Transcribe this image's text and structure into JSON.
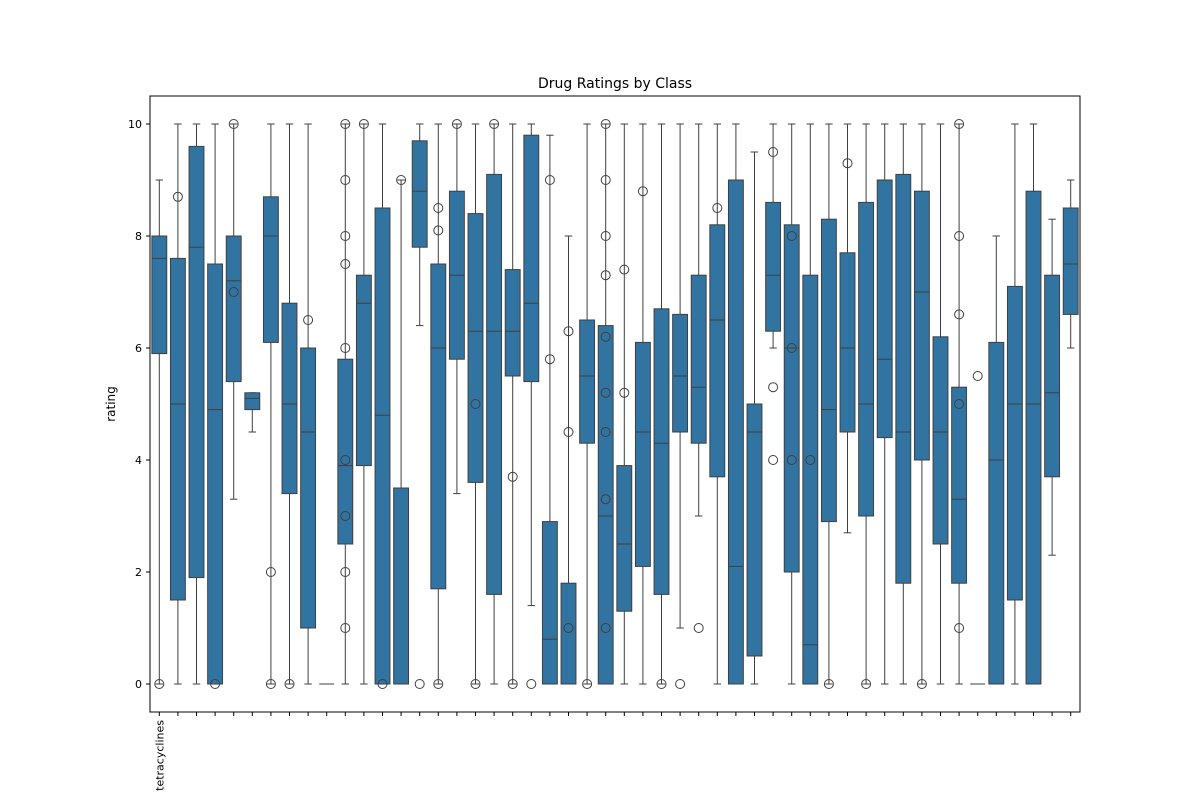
{
  "chart_data": {
    "type": "box",
    "title": "Drug Ratings by Class",
    "ylabel": "rating",
    "color": "#3274a1",
    "ylim": [
      -0.5,
      10.5
    ],
    "yticks": [
      0,
      2,
      4,
      6,
      8,
      10
    ],
    "categories": [
      "tetracyclines",
      null,
      null,
      null,
      null,
      null,
      null,
      null,
      null,
      null,
      null,
      null,
      null,
      null,
      null,
      null,
      null,
      null,
      null,
      null,
      null,
      null,
      null,
      null,
      null,
      null,
      null,
      null,
      null,
      null,
      null,
      null,
      null,
      null,
      null,
      null,
      null,
      null,
      null,
      null,
      null,
      null,
      null,
      null,
      null,
      null,
      null,
      null,
      null,
      null
    ],
    "boxes": [
      {
        "whislo": 0,
        "q1": 5.9,
        "med": 7.6,
        "q3": 8.0,
        "whishi": 9,
        "fliers": [
          0
        ]
      },
      {
        "whislo": 0,
        "q1": 1.5,
        "med": 5,
        "q3": 7.6,
        "whishi": 10,
        "fliers": [
          8.7
        ]
      },
      {
        "whislo": 0,
        "q1": 1.9,
        "med": 7.8,
        "q3": 9.6,
        "whishi": 10,
        "fliers": []
      },
      {
        "whislo": 0,
        "q1": 0,
        "med": 4.9,
        "q3": 7.5,
        "whishi": 10,
        "fliers": [
          0
        ]
      },
      {
        "whislo": 3.3,
        "q1": 5.4,
        "med": 7.2,
        "q3": 8,
        "whishi": 10,
        "fliers": [
          10,
          7
        ]
      },
      {
        "whislo": 4.5,
        "q1": 4.9,
        "med": 5.1,
        "q3": 5.2,
        "whishi": 5.2,
        "fliers": []
      },
      {
        "whislo": 0,
        "q1": 6.1,
        "med": 8,
        "q3": 8.7,
        "whishi": 10,
        "fliers": [
          0,
          2
        ]
      },
      {
        "whislo": 0,
        "q1": 3.4,
        "med": 5,
        "q3": 6.8,
        "whishi": 10,
        "fliers": [
          0
        ]
      },
      {
        "whislo": 0,
        "q1": 1,
        "med": 4.5,
        "q3": 6,
        "whishi": 10,
        "fliers": [
          6.5
        ]
      },
      {
        "whislo": 0,
        "q1": 0,
        "med": 0,
        "q3": 0,
        "whishi": 0,
        "fliers": []
      },
      {
        "whislo": 0,
        "q1": 2.5,
        "med": 3.9,
        "q3": 5.8,
        "whishi": 10,
        "fliers": [
          10,
          9,
          8,
          7.5,
          6,
          4,
          3,
          2,
          1
        ]
      },
      {
        "whislo": 0,
        "q1": 3.9,
        "med": 6.8,
        "q3": 7.3,
        "whishi": 10,
        "fliers": [
          10
        ]
      },
      {
        "whislo": 0,
        "q1": 0,
        "med": 4.8,
        "q3": 8.5,
        "whishi": 10,
        "fliers": [
          0
        ]
      },
      {
        "whislo": 0,
        "q1": 0,
        "med": 0,
        "q3": 3.5,
        "whishi": 9,
        "fliers": [
          9
        ]
      },
      {
        "whislo": 6.4,
        "q1": 7.8,
        "med": 8.8,
        "q3": 9.7,
        "whishi": 10,
        "fliers": [
          0
        ]
      },
      {
        "whislo": 0,
        "q1": 1.7,
        "med": 6,
        "q3": 7.5,
        "whishi": 10,
        "fliers": [
          8.5,
          8.1,
          0
        ]
      },
      {
        "whislo": 3.4,
        "q1": 5.8,
        "med": 7.3,
        "q3": 8.8,
        "whishi": 10,
        "fliers": [
          10
        ]
      },
      {
        "whislo": 0,
        "q1": 3.6,
        "med": 6.3,
        "q3": 8.4,
        "whishi": 10,
        "fliers": [
          5,
          0
        ]
      },
      {
        "whislo": 0,
        "q1": 1.6,
        "med": 6.3,
        "q3": 9.1,
        "whishi": 10,
        "fliers": [
          10
        ]
      },
      {
        "whislo": 0,
        "q1": 5.5,
        "med": 6.3,
        "q3": 7.4,
        "whishi": 10,
        "fliers": [
          3.7,
          0
        ]
      },
      {
        "whislo": 1.4,
        "q1": 5.4,
        "med": 6.8,
        "q3": 9.8,
        "whishi": 10,
        "fliers": [
          0
        ]
      },
      {
        "whislo": 0,
        "q1": 0,
        "med": 0.8,
        "q3": 2.9,
        "whishi": 9.8,
        "fliers": [
          9,
          5.8
        ]
      },
      {
        "whislo": 0,
        "q1": 0,
        "med": 0,
        "q3": 1.8,
        "whishi": 8,
        "fliers": [
          6.3,
          4.5,
          1
        ]
      },
      {
        "whislo": 0,
        "q1": 4.3,
        "med": 5.5,
        "q3": 6.5,
        "whishi": 10,
        "fliers": [
          0
        ]
      },
      {
        "whislo": 0,
        "q1": 0,
        "med": 3,
        "q3": 6.4,
        "whishi": 10,
        "fliers": [
          10,
          9,
          8,
          7.3,
          6.2,
          5.2,
          4.5,
          3.3,
          1
        ]
      },
      {
        "whislo": 0,
        "q1": 1.3,
        "med": 2.5,
        "q3": 3.9,
        "whishi": 10,
        "fliers": [
          7.4,
          5.2
        ]
      },
      {
        "whislo": 0,
        "q1": 2.1,
        "med": 4.5,
        "q3": 6.1,
        "whishi": 10,
        "fliers": [
          8.8
        ]
      },
      {
        "whislo": 0,
        "q1": 1.6,
        "med": 4.3,
        "q3": 6.7,
        "whishi": 10,
        "fliers": [
          0
        ]
      },
      {
        "whislo": 1,
        "q1": 4.5,
        "med": 5.5,
        "q3": 6.6,
        "whishi": 10,
        "fliers": [
          0
        ]
      },
      {
        "whislo": 3,
        "q1": 4.3,
        "med": 5.3,
        "q3": 7.3,
        "whishi": 10,
        "fliers": [
          1
        ]
      },
      {
        "whislo": 0,
        "q1": 3.7,
        "med": 6.5,
        "q3": 8.2,
        "whishi": 10,
        "fliers": [
          8.5
        ]
      },
      {
        "whislo": 0,
        "q1": 0,
        "med": 2.1,
        "q3": 9,
        "whishi": 10,
        "fliers": []
      },
      {
        "whislo": 0,
        "q1": 0.5,
        "med": 4.5,
        "q3": 5,
        "whishi": 9.5,
        "fliers": []
      },
      {
        "whislo": 6,
        "q1": 6.3,
        "med": 7.3,
        "q3": 8.6,
        "whishi": 10,
        "fliers": [
          9.5,
          5.3,
          4
        ]
      },
      {
        "whislo": 0,
        "q1": 2,
        "med": 6,
        "q3": 8.2,
        "whishi": 10,
        "fliers": [
          8,
          6,
          4
        ]
      },
      {
        "whislo": 0,
        "q1": 0,
        "med": 0.7,
        "q3": 7.3,
        "whishi": 10,
        "fliers": [
          4
        ]
      },
      {
        "whislo": 0,
        "q1": 2.9,
        "med": 4.9,
        "q3": 8.3,
        "whishi": 10,
        "fliers": [
          0
        ]
      },
      {
        "whislo": 2.7,
        "q1": 4.5,
        "med": 6,
        "q3": 7.7,
        "whishi": 10,
        "fliers": [
          9.3
        ]
      },
      {
        "whislo": 0,
        "q1": 3,
        "med": 5,
        "q3": 8.6,
        "whishi": 10,
        "fliers": [
          0
        ]
      },
      {
        "whislo": 0,
        "q1": 4.4,
        "med": 5.8,
        "q3": 9,
        "whishi": 10,
        "fliers": []
      },
      {
        "whislo": 0,
        "q1": 1.8,
        "med": 4.5,
        "q3": 9.1,
        "whishi": 10,
        "fliers": []
      },
      {
        "whislo": 0,
        "q1": 4,
        "med": 7,
        "q3": 8.8,
        "whishi": 10,
        "fliers": [
          0
        ]
      },
      {
        "whislo": 0,
        "q1": 2.5,
        "med": 4.5,
        "q3": 6.2,
        "whishi": 10,
        "fliers": []
      },
      {
        "whislo": 0,
        "q1": 1.8,
        "med": 3.3,
        "q3": 5.3,
        "whishi": 10,
        "fliers": [
          10,
          8,
          6.6,
          5,
          1
        ]
      },
      {
        "whislo": 0,
        "q1": 0,
        "med": 0,
        "q3": 0,
        "whishi": 0,
        "fliers": [
          5.5
        ]
      },
      {
        "whislo": 0,
        "q1": 0,
        "med": 4,
        "q3": 6.1,
        "whishi": 8,
        "fliers": []
      },
      {
        "whislo": 0,
        "q1": 1.5,
        "med": 5,
        "q3": 7.1,
        "whishi": 10,
        "fliers": []
      },
      {
        "whislo": 0,
        "q1": 0,
        "med": 5,
        "q3": 8.8,
        "whishi": 10,
        "fliers": []
      },
      {
        "whislo": 2.3,
        "q1": 3.7,
        "med": 5.2,
        "q3": 7.3,
        "whishi": 8.3,
        "fliers": []
      },
      {
        "whislo": 6,
        "q1": 6.6,
        "med": 7.5,
        "q3": 8.5,
        "whishi": 9,
        "fliers": []
      }
    ]
  }
}
